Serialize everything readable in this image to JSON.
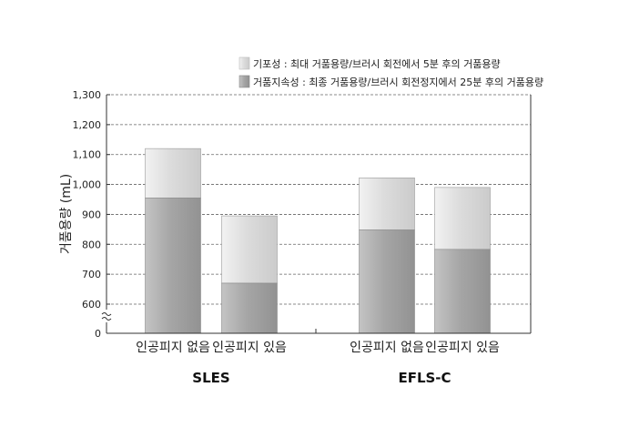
{
  "chart_data": {
    "type": "bar",
    "stacked": true,
    "ylabel": "거품용량 (mL)",
    "y_axis_break": true,
    "y_ticks": [
      {
        "value": 0,
        "label": "0"
      },
      {
        "value": 600,
        "label": "600"
      },
      {
        "value": 700,
        "label": "700"
      },
      {
        "value": 800,
        "label": "800"
      },
      {
        "value": 900,
        "label": "900"
      },
      {
        "value": 1000,
        "label": "1,000"
      },
      {
        "value": 1100,
        "label": "1,100"
      },
      {
        "value": 1200,
        "label": "1,200"
      },
      {
        "value": 1300,
        "label": "1,300"
      }
    ],
    "ylim": [
      0,
      1300
    ],
    "gridlines": "dashed",
    "legend_position": "top-right",
    "groups": [
      {
        "label": "SLES",
        "categories": [
          "인공피지 없음",
          "인공피지 있음"
        ]
      },
      {
        "label": "EFLS-C",
        "categories": [
          "인공피지 없음",
          "인공피지 있음"
        ]
      }
    ],
    "series": [
      {
        "name": "거품지속성 : 최종 거품용량/브러시 회전정지에서 25분 후의 거품용량",
        "values": [
          955,
          670,
          848,
          783
        ],
        "color": "#a8a8a8"
      },
      {
        "name": "기포성 : 최대 거품용량/브러시 회전에서 5분 후의 거품용량",
        "values": [
          1120,
          895,
          1022,
          990
        ],
        "color": "#dcdcdc"
      }
    ]
  }
}
